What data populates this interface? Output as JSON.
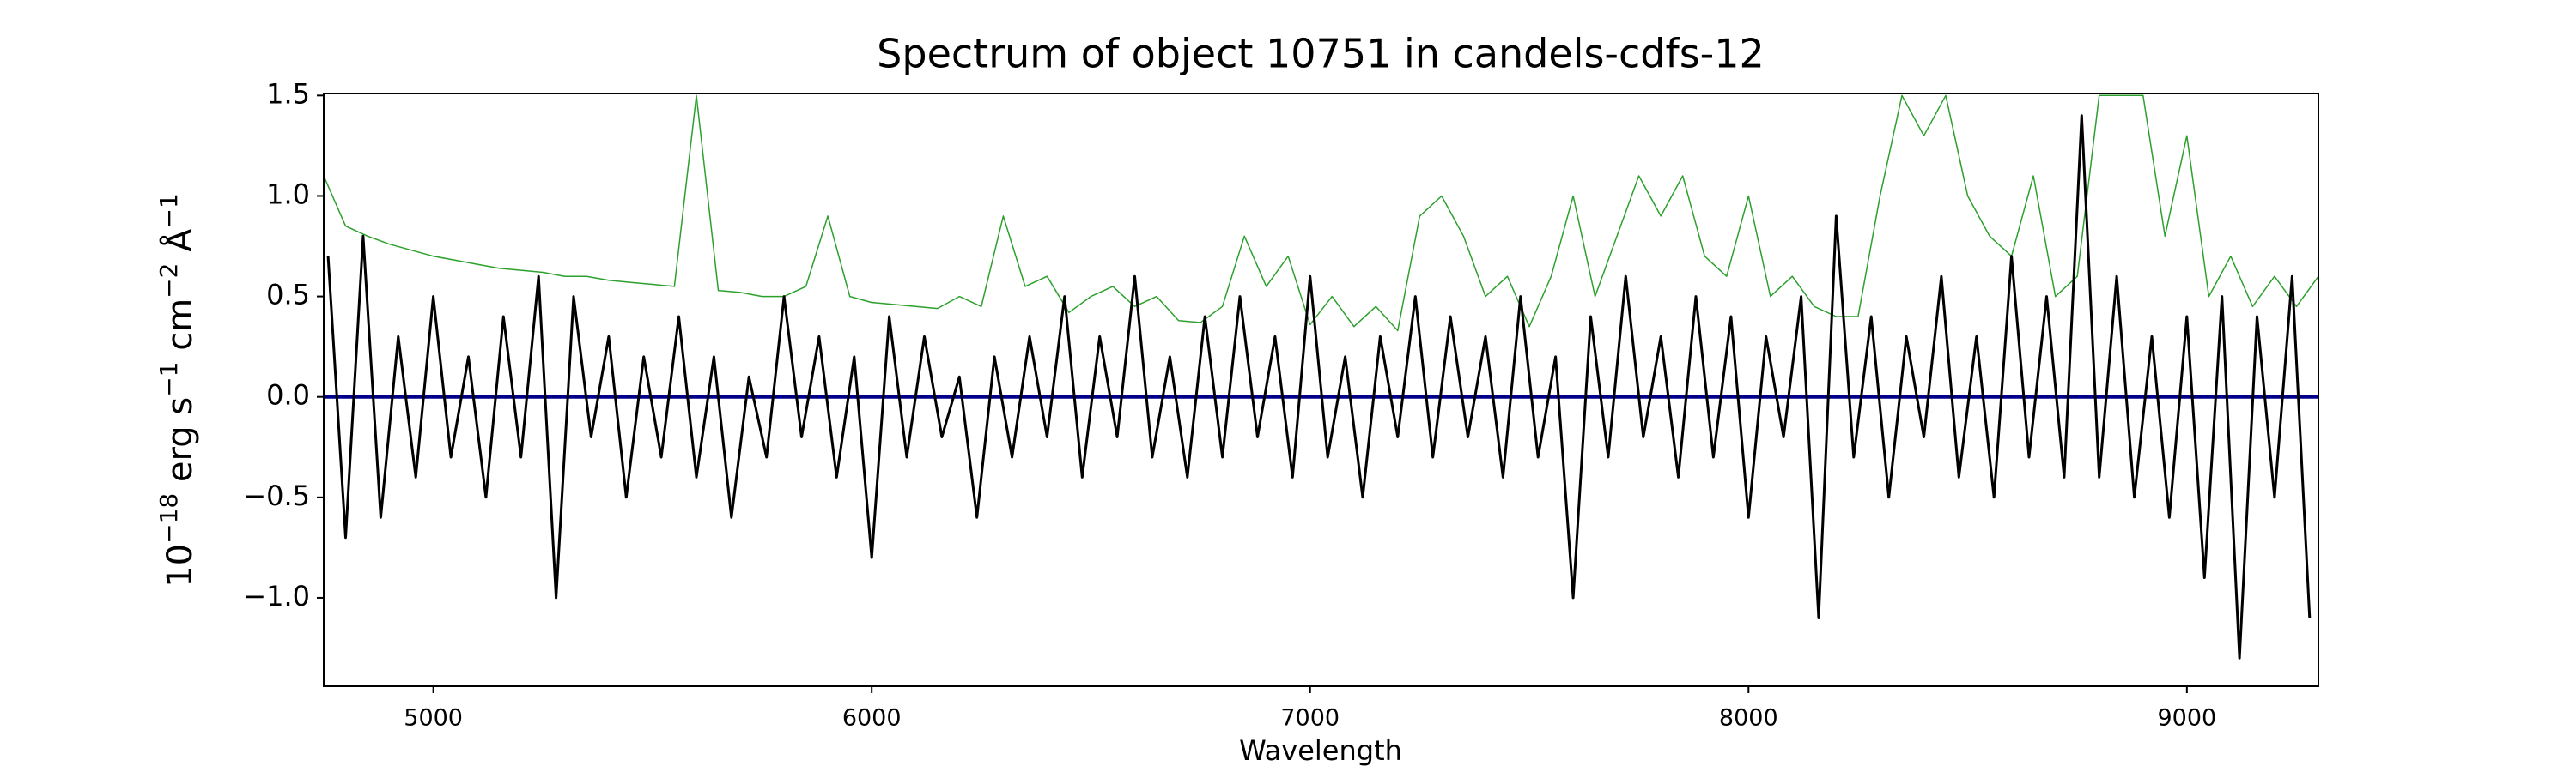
{
  "chart_data": {
    "type": "line",
    "title": "Spectrum of object 10751 in candels-cdfs-12",
    "xlabel": "Wavelength",
    "ylabel": [
      {
        "text": "10",
        "sup": "−18"
      },
      {
        "text": " erg s",
        "sup": "−1"
      },
      {
        "text": " cm",
        "sup": "−2"
      },
      {
        "text": " Å",
        "sup": "−1"
      }
    ],
    "xlim": [
      4750,
      9300
    ],
    "ylim": [
      -1.44,
      1.51
    ],
    "xticks": [
      5000,
      6000,
      7000,
      8000,
      9000
    ],
    "yticks": [
      {
        "value": -1.0,
        "label": "−1.0"
      },
      {
        "value": -0.5,
        "label": "−0.5"
      },
      {
        "value": 0.0,
        "label": "0.0"
      },
      {
        "value": 0.5,
        "label": "0.5"
      },
      {
        "value": 1.0,
        "label": "1.0"
      },
      {
        "value": 1.5,
        "label": "1.5"
      }
    ],
    "grid": false,
    "series": [
      {
        "color": "#2ca02c",
        "width": 1.5,
        "x": [
          4750,
          4800,
          4850,
          4900,
          4950,
          5000,
          5050,
          5100,
          5150,
          5200,
          5250,
          5300,
          5350,
          5400,
          5450,
          5500,
          5550,
          5600,
          5650,
          5700,
          5750,
          5800,
          5850,
          5900,
          5950,
          6000,
          6050,
          6100,
          6150,
          6200,
          6250,
          6300,
          6350,
          6400,
          6450,
          6500,
          6550,
          6600,
          6650,
          6700,
          6750,
          6800,
          6850,
          6900,
          6950,
          7000,
          7050,
          7100,
          7150,
          7200,
          7250,
          7300,
          7350,
          7400,
          7450,
          7500,
          7550,
          7600,
          7650,
          7700,
          7750,
          7800,
          7850,
          7900,
          7950,
          8000,
          8050,
          8100,
          8150,
          8200,
          8250,
          8300,
          8350,
          8400,
          8450,
          8500,
          8550,
          8600,
          8650,
          8700,
          8750,
          8800,
          8850,
          8900,
          8950,
          9000,
          9050,
          9100,
          9150,
          9200,
          9250,
          9300
        ],
        "values": [
          1.1,
          0.85,
          0.8,
          0.76,
          0.73,
          0.7,
          0.68,
          0.66,
          0.64,
          0.63,
          0.62,
          0.6,
          0.6,
          0.58,
          0.57,
          0.56,
          0.55,
          1.5,
          0.53,
          0.52,
          0.5,
          0.5,
          0.55,
          0.9,
          0.5,
          0.47,
          0.46,
          0.45,
          0.44,
          0.5,
          0.45,
          0.9,
          0.55,
          0.6,
          0.42,
          0.5,
          0.55,
          0.45,
          0.5,
          0.38,
          0.37,
          0.45,
          0.8,
          0.55,
          0.7,
          0.36,
          0.5,
          0.35,
          0.45,
          0.33,
          0.9,
          1.0,
          0.8,
          0.5,
          0.6,
          0.35,
          0.6,
          1.0,
          0.5,
          0.8,
          1.1,
          0.9,
          1.1,
          0.7,
          0.6,
          1.0,
          0.5,
          0.6,
          0.45,
          0.4,
          0.4,
          1.0,
          1.5,
          1.3,
          1.5,
          1.0,
          0.8,
          0.7,
          1.1,
          0.5,
          0.6,
          1.5,
          1.5,
          1.5,
          0.8,
          1.3,
          0.5,
          0.7,
          0.45,
          0.6,
          0.45,
          0.6
        ]
      },
      {
        "color": "#00008b",
        "width": 4,
        "x": [
          4750,
          9300
        ],
        "values": [
          0.0,
          0.0
        ]
      },
      {
        "color": "#000000",
        "width": 3,
        "x": [
          4760,
          4800,
          4840,
          4880,
          4920,
          4960,
          5000,
          5040,
          5080,
          5120,
          5160,
          5200,
          5240,
          5280,
          5320,
          5360,
          5400,
          5440,
          5480,
          5520,
          5560,
          5600,
          5640,
          5680,
          5720,
          5760,
          5800,
          5840,
          5880,
          5920,
          5960,
          6000,
          6040,
          6080,
          6120,
          6160,
          6200,
          6240,
          6280,
          6320,
          6360,
          6400,
          6440,
          6480,
          6520,
          6560,
          6600,
          6640,
          6680,
          6720,
          6760,
          6800,
          6840,
          6880,
          6920,
          6960,
          7000,
          7040,
          7080,
          7120,
          7160,
          7200,
          7240,
          7280,
          7320,
          7360,
          7400,
          7440,
          7480,
          7520,
          7560,
          7600,
          7640,
          7680,
          7720,
          7760,
          7800,
          7840,
          7880,
          7920,
          7960,
          8000,
          8040,
          8080,
          8120,
          8160,
          8200,
          8240,
          8280,
          8320,
          8360,
          8400,
          8440,
          8480,
          8520,
          8560,
          8600,
          8640,
          8680,
          8720,
          8760,
          8800,
          8840,
          8880,
          8920,
          8960,
          9000,
          9040,
          9080,
          9120,
          9160,
          9200,
          9240,
          9280
        ],
        "values": [
          0.7,
          -0.7,
          0.8,
          -0.6,
          0.3,
          -0.4,
          0.5,
          -0.3,
          0.2,
          -0.5,
          0.4,
          -0.3,
          0.6,
          -1.0,
          0.5,
          -0.2,
          0.3,
          -0.5,
          0.2,
          -0.3,
          0.4,
          -0.4,
          0.2,
          -0.6,
          0.1,
          -0.3,
          0.5,
          -0.2,
          0.3,
          -0.4,
          0.2,
          -0.8,
          0.4,
          -0.3,
          0.3,
          -0.2,
          0.1,
          -0.6,
          0.2,
          -0.3,
          0.3,
          -0.2,
          0.5,
          -0.4,
          0.3,
          -0.2,
          0.6,
          -0.3,
          0.2,
          -0.4,
          0.4,
          -0.3,
          0.5,
          -0.2,
          0.3,
          -0.4,
          0.6,
          -0.3,
          0.2,
          -0.5,
          0.3,
          -0.2,
          0.5,
          -0.3,
          0.4,
          -0.2,
          0.3,
          -0.4,
          0.5,
          -0.3,
          0.2,
          -1.0,
          0.4,
          -0.3,
          0.6,
          -0.2,
          0.3,
          -0.4,
          0.5,
          -0.3,
          0.4,
          -0.6,
          0.3,
          -0.2,
          0.5,
          -1.1,
          0.9,
          -0.3,
          0.4,
          -0.5,
          0.3,
          -0.2,
          0.6,
          -0.4,
          0.3,
          -0.5,
          0.7,
          -0.3,
          0.5,
          -0.4,
          1.4,
          -0.4,
          0.6,
          -0.5,
          0.3,
          -0.6,
          0.4,
          -0.9,
          0.5,
          -1.3,
          0.4,
          -0.5,
          0.6,
          -1.1
        ]
      }
    ]
  }
}
